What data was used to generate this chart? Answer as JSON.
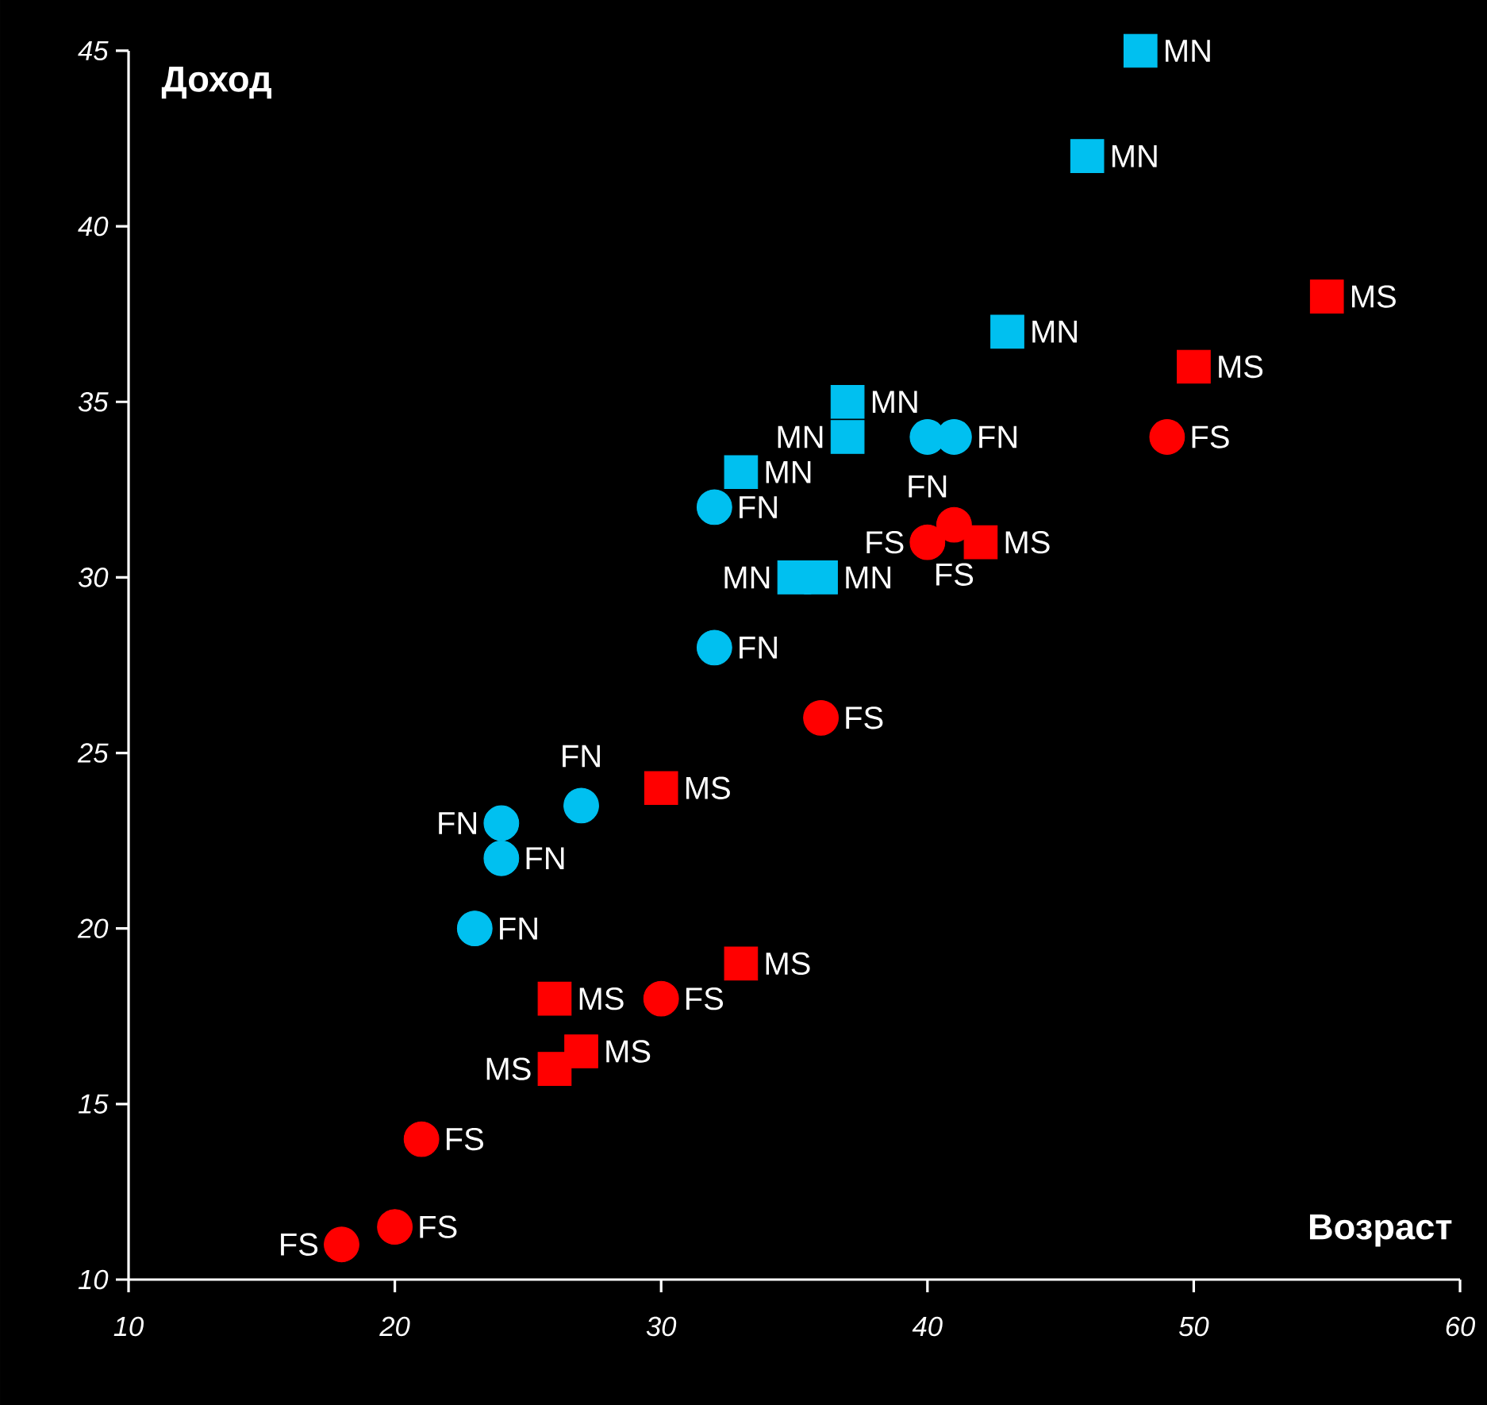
{
  "chart_data": {
    "type": "scatter",
    "xlabel": "Возраст",
    "ylabel": "Доход",
    "xlim": [
      10,
      60
    ],
    "ylim": [
      10,
      45
    ],
    "xticks": [
      10,
      20,
      30,
      40,
      50,
      60
    ],
    "yticks": [
      10,
      15,
      20,
      25,
      30,
      35,
      40,
      45
    ],
    "series": [
      {
        "color": "#00c0f0",
        "marker": "square",
        "x": [
          48,
          46,
          43,
          37,
          37,
          33,
          35,
          36
        ],
        "values": [
          45,
          42,
          37,
          35,
          34,
          33,
          30,
          30
        ],
        "value_labels": [
          "MN",
          "MN",
          "MN",
          "MN",
          "MN",
          "MN",
          "MN",
          "MN"
        ]
      },
      {
        "color": "#00c0f0",
        "marker": "circle",
        "x": [
          40,
          41,
          32,
          32,
          27,
          24,
          24,
          23
        ],
        "values": [
          34,
          34,
          32,
          28,
          23.5,
          23,
          22,
          20
        ],
        "value_labels": [
          "FN",
          "FN",
          "FN",
          "FN",
          "FN",
          "FN",
          "FN",
          "FN"
        ]
      },
      {
        "color": "#ff0000",
        "marker": "circle",
        "x": [
          49,
          41,
          40,
          36,
          30,
          21,
          20,
          18
        ],
        "values": [
          34,
          31.5,
          31,
          26,
          18,
          14,
          11.5,
          11
        ],
        "value_labels": [
          "FS",
          "FS",
          "FS",
          "FS",
          "FS",
          "FS",
          "FS",
          "FS"
        ]
      },
      {
        "color": "#ff0000",
        "marker": "square",
        "x": [
          55,
          50,
          42,
          30,
          33,
          26,
          27,
          26
        ],
        "values": [
          38,
          36,
          31,
          24,
          19,
          18,
          16.5,
          16
        ],
        "value_labels": [
          "MS",
          "MS",
          "MS",
          "MS",
          "MS",
          "MS",
          "MS",
          "MS"
        ]
      }
    ]
  }
}
